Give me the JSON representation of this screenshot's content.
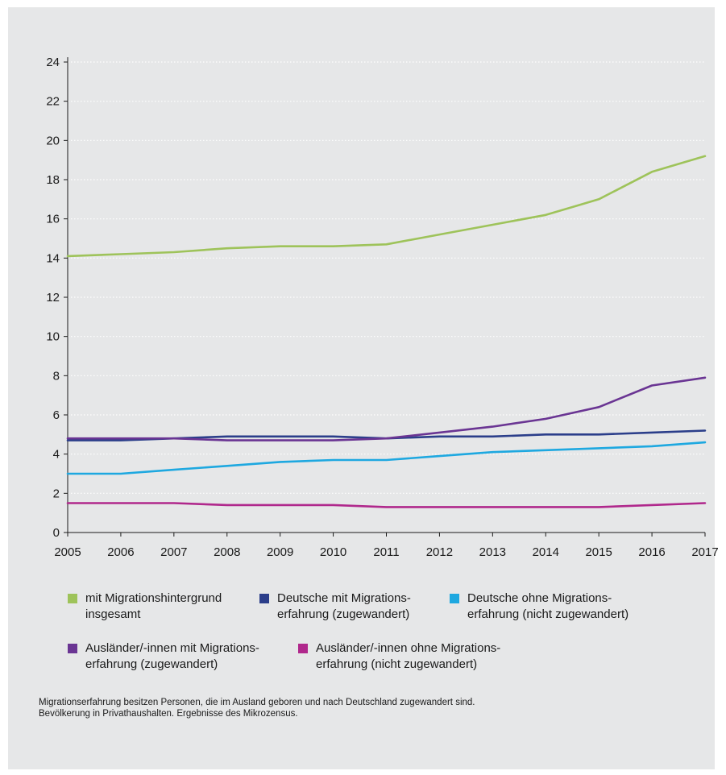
{
  "chart_data": {
    "type": "line",
    "title": "",
    "xlabel": "",
    "ylabel": "",
    "x": [
      2005,
      2006,
      2007,
      2008,
      2009,
      2010,
      2011,
      2012,
      2013,
      2014,
      2015,
      2016,
      2017
    ],
    "ylim": [
      0,
      24
    ],
    "yticks": [
      0,
      2,
      4,
      6,
      8,
      10,
      12,
      14,
      16,
      18,
      20,
      22,
      24
    ],
    "grid": true,
    "legend_position": "bottom",
    "series": [
      {
        "name": "mit Migrationshintergrund insgesamt",
        "color": "#9ec35a",
        "values": [
          14.1,
          14.2,
          14.3,
          14.5,
          14.6,
          14.6,
          14.7,
          15.2,
          15.7,
          16.2,
          17.0,
          18.4,
          19.2
        ]
      },
      {
        "name": "Deutsche mit Migrations-erfahrung (zugewandert)",
        "color": "#2b3e8a",
        "values": [
          4.7,
          4.7,
          4.8,
          4.9,
          4.9,
          4.9,
          4.8,
          4.9,
          4.9,
          5.0,
          5.0,
          5.1,
          5.2
        ]
      },
      {
        "name": "Deutsche ohne Migrations-erfahrung (nicht zugewandert)",
        "color": "#1ea8e0",
        "values": [
          3.0,
          3.0,
          3.2,
          3.4,
          3.6,
          3.7,
          3.7,
          3.9,
          4.1,
          4.2,
          4.3,
          4.4,
          4.6
        ]
      },
      {
        "name": "Ausländer/-innen mit Migrations-erfahrung (zugewandert)",
        "color": "#6a3593",
        "values": [
          4.8,
          4.8,
          4.8,
          4.7,
          4.7,
          4.7,
          4.8,
          5.1,
          5.4,
          5.8,
          6.4,
          7.5,
          7.9
        ]
      },
      {
        "name": "Ausländer/-innen ohne Migrations-erfahrung (nicht zugewandert)",
        "color": "#b0288c",
        "values": [
          1.5,
          1.5,
          1.5,
          1.4,
          1.4,
          1.4,
          1.3,
          1.3,
          1.3,
          1.3,
          1.3,
          1.4,
          1.5
        ]
      }
    ]
  },
  "legend": {
    "items": [
      {
        "label": "mit Migrationshintergrund\ninsgesamt",
        "color": "#9ec35a"
      },
      {
        "label": "Deutsche mit Migrations-\nerfahrung (zugewandert)",
        "color": "#2b3e8a"
      },
      {
        "label": "Deutsche ohne Migrations-\nerfahrung (nicht zugewandert)",
        "color": "#1ea8e0"
      },
      {
        "label": "Ausländer/-innen mit Migrations-\nerfahrung (zugewandert)",
        "color": "#6a3593"
      },
      {
        "label": "Ausländer/-innen ohne Migrations-\nerfahrung (nicht zugewandert)",
        "color": "#b0288c"
      }
    ]
  },
  "footnote": {
    "line1": "Migrationserfahrung besitzen Personen, die im Ausland geboren und nach Deutschland zugewandert sind.",
    "line2": "Bevölkerung in Privathaushalten. Ergebnisse des Mikrozensus."
  }
}
